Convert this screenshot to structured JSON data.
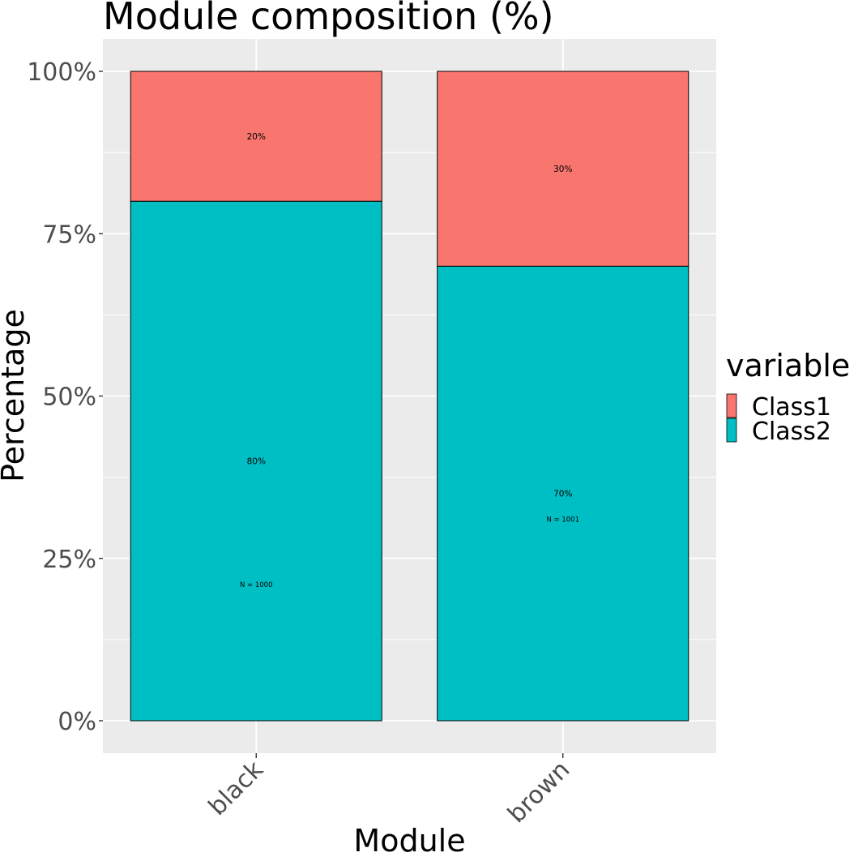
{
  "chart_data": {
    "type": "bar",
    "stacked": true,
    "title": "Module composition (%)",
    "xlabel": "Module",
    "ylabel": "Percentage",
    "ylim": [
      0,
      100
    ],
    "y_ticks": [
      "0%",
      "25%",
      "50%",
      "75%",
      "100%"
    ],
    "y_tick_values": [
      0,
      25,
      50,
      75,
      100
    ],
    "categories": [
      "black",
      "brown"
    ],
    "series": [
      {
        "name": "Class2",
        "values": [
          80,
          70
        ],
        "labels": [
          "80%",
          "70%"
        ],
        "color": "#00BFC4"
      },
      {
        "name": "Class1",
        "values": [
          20,
          30
        ],
        "labels": [
          "20%",
          "30%"
        ],
        "color": "#F8766D"
      }
    ],
    "n_labels": [
      "N =  1000",
      "N =  1001"
    ],
    "n_label_values": [
      21,
      31
    ],
    "legend": {
      "title": "variable",
      "position": "right",
      "items": [
        "Class1",
        "Class2"
      ]
    },
    "grid": true,
    "panel_background": "#EBEBEB",
    "grid_color": "#FFFFFF",
    "bar_outline": "#000000"
  }
}
